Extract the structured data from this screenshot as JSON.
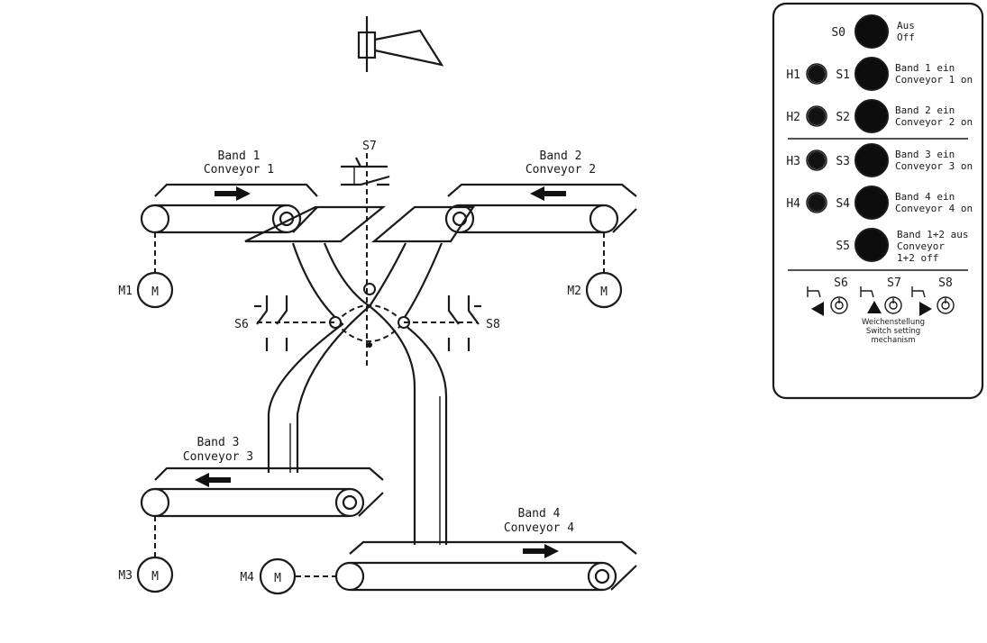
{
  "conveyors": {
    "band1": {
      "de": "Band 1",
      "en": "Conveyor 1"
    },
    "band2": {
      "de": "Band 2",
      "en": "Conveyor 2"
    },
    "band3": {
      "de": "Band 3",
      "en": "Conveyor 3"
    },
    "band4": {
      "de": "Band 4",
      "en": "Conveyor 4"
    }
  },
  "motors": {
    "m1": "M1",
    "m2": "M2",
    "m3": "M3",
    "m4": "M4",
    "symbol": "M"
  },
  "switches": {
    "s6": "S6",
    "s7": "S7",
    "s8": "S8"
  },
  "panel": {
    "s0": {
      "id": "S0",
      "de": "Aus",
      "en": "Off"
    },
    "s1": {
      "id": "S1",
      "lamp": "H1",
      "de": "Band 1 ein",
      "en": "Conveyor 1 on"
    },
    "s2": {
      "id": "S2",
      "lamp": "H2",
      "de": "Band 2 ein",
      "en": "Conveyor 2 on"
    },
    "s3": {
      "id": "S3",
      "lamp": "H3",
      "de": "Band 3 ein",
      "en": "Conveyor 3 on"
    },
    "s4": {
      "id": "S4",
      "lamp": "H4",
      "de": "Band 4 ein",
      "en": "Conveyor 4 on"
    },
    "s5": {
      "id": "S5",
      "de": "Band 1+2 aus",
      "en1": "Conveyor",
      "en2": "1+2 off"
    },
    "switch_ids": {
      "s6": "S6",
      "s7": "S7",
      "s8": "S8"
    },
    "switch_caption": {
      "de": "Weichenstellung",
      "en1": "Switch setting",
      "en2": "mechanism"
    }
  }
}
